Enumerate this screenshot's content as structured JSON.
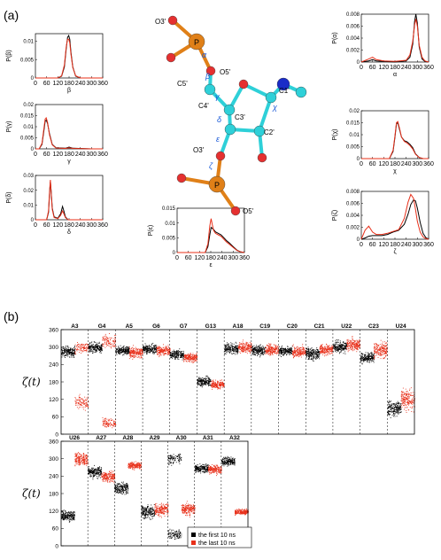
{
  "panel_labels": [
    "(a)",
    "(b)"
  ],
  "legend": {
    "black": "the first 10 ns",
    "red": "the last 10 ns"
  },
  "colors": {
    "first": "#000000",
    "last": "#e8301a",
    "carbon": "#2ed0d8",
    "oxygen": "#e53030",
    "phosphorus": "#e08018",
    "nitrogen": "#1a2cc8",
    "greek": "#1a5ad8"
  },
  "molecule": {
    "atoms": [
      {
        "label": "O3'"
      },
      {
        "label": "P"
      },
      {
        "label": "O5'"
      },
      {
        "label": "C5'"
      },
      {
        "label": "C4'"
      },
      {
        "label": "C3'"
      },
      {
        "label": "C1'"
      },
      {
        "label": "C2'"
      },
      {
        "label": "O3'"
      },
      {
        "label": "P"
      },
      {
        "label": "O5'"
      }
    ],
    "torsions": [
      "α",
      "β",
      "γ",
      "δ",
      "ε",
      "ζ",
      "χ"
    ]
  },
  "chart_data": [
    {
      "type": "line",
      "id": "P_beta",
      "ylabel": "P(β)",
      "xlabel": "β",
      "xlim": [
        0,
        360
      ],
      "ylim": [
        0,
        0.012
      ],
      "yticks": [
        "0",
        "0.005",
        "0.01"
      ],
      "xticks": [
        "0",
        "60",
        "120",
        "180",
        "240",
        "300",
        "360"
      ],
      "series": [
        {
          "name": "the first 10 ns",
          "color": "#000",
          "x": [
            0,
            120,
            140,
            155,
            165,
            172,
            178,
            184,
            190,
            200,
            215,
            240,
            360
          ],
          "y": [
            0,
            0,
            0.0005,
            0.003,
            0.008,
            0.011,
            0.0115,
            0.0105,
            0.007,
            0.003,
            0.0005,
            0,
            0
          ]
        },
        {
          "name": "the last 10 ns",
          "color": "#e8301a",
          "x": [
            0,
            120,
            140,
            155,
            165,
            172,
            178,
            184,
            190,
            200,
            215,
            240,
            360
          ],
          "y": [
            0,
            0,
            0.0006,
            0.0035,
            0.0085,
            0.0105,
            0.0105,
            0.0095,
            0.0065,
            0.0028,
            0.0006,
            0,
            0
          ]
        }
      ]
    },
    {
      "type": "line",
      "id": "P_gamma",
      "ylabel": "P(γ)",
      "xlabel": "γ",
      "xlim": [
        0,
        360
      ],
      "ylim": [
        0,
        0.02
      ],
      "yticks": [
        "0",
        "0.005",
        "0.01",
        "0.015",
        "0.02"
      ],
      "xticks": [
        "0",
        "60",
        "120",
        "180",
        "240",
        "300",
        "360"
      ],
      "series": [
        {
          "name": "the first 10 ns",
          "color": "#000",
          "x": [
            0,
            20,
            35,
            45,
            52,
            58,
            65,
            75,
            90,
            110,
            160,
            180,
            200,
            300,
            360
          ],
          "y": [
            0,
            0,
            0.002,
            0.008,
            0.0125,
            0.013,
            0.0115,
            0.007,
            0.002,
            0.0005,
            0.0003,
            0.0008,
            0.0003,
            0,
            0
          ]
        },
        {
          "name": "the last 10 ns",
          "color": "#e8301a",
          "x": [
            0,
            20,
            35,
            45,
            52,
            58,
            65,
            75,
            90,
            110,
            160,
            180,
            200,
            300,
            360
          ],
          "y": [
            0,
            0,
            0.0025,
            0.009,
            0.0135,
            0.014,
            0.012,
            0.0065,
            0.0018,
            0.0004,
            0.0002,
            0.0005,
            0.0002,
            0,
            0
          ]
        }
      ]
    },
    {
      "type": "line",
      "id": "P_delta",
      "ylabel": "P(δ)",
      "xlabel": "δ",
      "xlim": [
        0,
        360
      ],
      "ylim": [
        0,
        0.03
      ],
      "yticks": [
        "0",
        "0.01",
        "0.02",
        "0.03"
      ],
      "xticks": [
        "0",
        "60",
        "120",
        "180",
        "240",
        "300",
        "360"
      ],
      "series": [
        {
          "name": "the first 10 ns",
          "color": "#000",
          "x": [
            0,
            60,
            70,
            76,
            80,
            84,
            90,
            100,
            120,
            135,
            145,
            152,
            160,
            175,
            200,
            360
          ],
          "y": [
            0,
            0,
            0.005,
            0.018,
            0.026,
            0.02,
            0.008,
            0.002,
            0.001,
            0.004,
            0.009,
            0.006,
            0.002,
            0,
            0,
            0
          ]
        },
        {
          "name": "the last 10 ns",
          "color": "#e8301a",
          "x": [
            0,
            60,
            70,
            76,
            80,
            84,
            90,
            100,
            120,
            135,
            145,
            152,
            160,
            175,
            200,
            360
          ],
          "y": [
            0,
            0,
            0.006,
            0.02,
            0.027,
            0.019,
            0.007,
            0.0015,
            0.0008,
            0.003,
            0.006,
            0.004,
            0.0015,
            0,
            0,
            0
          ]
        }
      ]
    },
    {
      "type": "line",
      "id": "P_alpha",
      "ylabel": "P(α)",
      "xlabel": "α",
      "xlim": [
        0,
        360
      ],
      "ylim": [
        0,
        0.008
      ],
      "yticks": [
        "0",
        "0.002",
        "0.004",
        "0.006",
        "0.008"
      ],
      "xticks": [
        "0",
        "60",
        "120",
        "180",
        "240",
        "300",
        "360"
      ],
      "series": [
        {
          "name": "the first 10 ns",
          "color": "#000",
          "x": [
            0,
            40,
            60,
            80,
            120,
            180,
            240,
            260,
            275,
            285,
            292,
            300,
            310,
            325,
            340,
            360
          ],
          "y": [
            0,
            0.0002,
            0.0004,
            0.0002,
            0.0001,
            0,
            0.0002,
            0.0008,
            0.003,
            0.0068,
            0.008,
            0.0065,
            0.0025,
            0.0005,
            0.0001,
            0
          ]
        },
        {
          "name": "the last 10 ns",
          "color": "#e8301a",
          "x": [
            0,
            40,
            60,
            80,
            120,
            180,
            240,
            260,
            275,
            285,
            292,
            300,
            310,
            325,
            340,
            360
          ],
          "y": [
            0,
            0.0005,
            0.0008,
            0.0004,
            0.0002,
            0.0001,
            0.0003,
            0.0012,
            0.0035,
            0.0062,
            0.0072,
            0.006,
            0.0028,
            0.0008,
            0.0002,
            0
          ]
        }
      ]
    },
    {
      "type": "line",
      "id": "P_chi",
      "ylabel": "P(χ)",
      "xlabel": "χ",
      "xlim": [
        0,
        360
      ],
      "ylim": [
        0,
        0.02
      ],
      "yticks": [
        "0",
        "0.005",
        "0.01",
        "0.015",
        "0.02"
      ],
      "xticks": [
        "0",
        "60",
        "120",
        "180",
        "240",
        "300",
        "360"
      ],
      "series": [
        {
          "name": "the first 10 ns",
          "color": "#000",
          "x": [
            0,
            150,
            170,
            180,
            188,
            195,
            205,
            215,
            230,
            245,
            260,
            275,
            290,
            310,
            330,
            360
          ],
          "y": [
            0,
            0,
            0.003,
            0.009,
            0.0145,
            0.015,
            0.012,
            0.009,
            0.0075,
            0.007,
            0.006,
            0.0045,
            0.002,
            0.0005,
            0,
            0
          ]
        },
        {
          "name": "the last 10 ns",
          "color": "#e8301a",
          "x": [
            0,
            150,
            170,
            180,
            188,
            195,
            205,
            215,
            230,
            245,
            260,
            275,
            290,
            310,
            330,
            360
          ],
          "y": [
            0,
            0,
            0.0035,
            0.0095,
            0.015,
            0.0155,
            0.0125,
            0.009,
            0.0072,
            0.0065,
            0.0055,
            0.004,
            0.0018,
            0.0004,
            0,
            0
          ]
        }
      ]
    },
    {
      "type": "line",
      "id": "P_zeta",
      "ylabel": "P(ζ)",
      "xlabel": "ζ",
      "xlim": [
        0,
        360
      ],
      "ylim": [
        0,
        0.008
      ],
      "yticks": [
        "0",
        "0.002",
        "0.004",
        "0.006",
        "0.008"
      ],
      "xticks": [
        "0",
        "60",
        "120",
        "180",
        "240",
        "300",
        "360"
      ],
      "series": [
        {
          "name": "the first 10 ns",
          "color": "#000",
          "x": [
            0,
            20,
            40,
            60,
            80,
            110,
            140,
            170,
            200,
            230,
            250,
            265,
            280,
            290,
            300,
            315,
            330,
            345,
            360
          ],
          "y": [
            0,
            0.0002,
            0.0005,
            0.0006,
            0.0006,
            0.0006,
            0.0008,
            0.0012,
            0.0015,
            0.0025,
            0.0042,
            0.0058,
            0.0066,
            0.0064,
            0.0052,
            0.0028,
            0.001,
            0.0003,
            0
          ]
        },
        {
          "name": "the last 10 ns",
          "color": "#e8301a",
          "x": [
            0,
            20,
            40,
            60,
            80,
            110,
            140,
            170,
            200,
            230,
            250,
            265,
            280,
            290,
            300,
            315,
            330,
            345,
            360
          ],
          "y": [
            0,
            0.0015,
            0.0022,
            0.0012,
            0.0008,
            0.0008,
            0.001,
            0.0013,
            0.0016,
            0.0035,
            0.0062,
            0.0075,
            0.0068,
            0.005,
            0.003,
            0.0012,
            0.0004,
            0.0001,
            0
          ]
        }
      ]
    },
    {
      "type": "line",
      "id": "P_epsilon",
      "ylabel": "P(ε)",
      "xlabel": "ε",
      "xlim": [
        0,
        360
      ],
      "ylim": [
        0,
        0.015
      ],
      "yticks": [
        "0",
        "0.005",
        "0.01",
        "0.015"
      ],
      "xticks": [
        "0",
        "60",
        "120",
        "180",
        "240",
        "300",
        "360"
      ],
      "series": [
        {
          "name": "the first 10 ns",
          "color": "#000",
          "x": [
            0,
            150,
            165,
            175,
            182,
            188,
            195,
            205,
            220,
            235,
            250,
            265,
            280,
            300,
            320,
            340,
            360
          ],
          "y": [
            0,
            0,
            0.002,
            0.006,
            0.0085,
            0.0082,
            0.0078,
            0.007,
            0.0065,
            0.006,
            0.005,
            0.004,
            0.0032,
            0.002,
            0.0008,
            0.0002,
            0
          ]
        },
        {
          "name": "the last 10 ns",
          "color": "#e8301a",
          "x": [
            0,
            150,
            165,
            175,
            182,
            188,
            195,
            205,
            220,
            235,
            250,
            265,
            280,
            300,
            320,
            340,
            360
          ],
          "y": [
            0,
            0,
            0.003,
            0.009,
            0.0115,
            0.0095,
            0.0075,
            0.0065,
            0.006,
            0.0055,
            0.0045,
            0.0035,
            0.0028,
            0.0017,
            0.0007,
            0.0002,
            0
          ]
        }
      ]
    },
    {
      "type": "scatter",
      "id": "zeta_t_top",
      "ylabel": "ζ(t)",
      "ylim": [
        0,
        360
      ],
      "yticks": [
        "0",
        "60",
        "120",
        "180",
        "240",
        "300",
        "360"
      ],
      "residues": [
        {
          "name": "A3",
          "first": [
            {
              "c": 285,
              "s": 12
            }
          ],
          "last": [
            {
              "c": 300,
              "s": 14
            },
            {
              "c": 110,
              "s": 15
            }
          ]
        },
        {
          "name": "G4",
          "first": [
            {
              "c": 298,
              "s": 12
            }
          ],
          "last": [
            {
              "c": 320,
              "s": 16
            },
            {
              "c": 40,
              "s": 10
            }
          ]
        },
        {
          "name": "A5",
          "first": [
            {
              "c": 290,
              "s": 10
            }
          ],
          "last": [
            {
              "c": 282,
              "s": 12
            }
          ]
        },
        {
          "name": "G6",
          "first": [
            {
              "c": 295,
              "s": 10
            }
          ],
          "last": [
            {
              "c": 288,
              "s": 11
            }
          ]
        },
        {
          "name": "G7",
          "first": [
            {
              "c": 275,
              "s": 10
            }
          ],
          "last": [
            {
              "c": 265,
              "s": 10
            }
          ]
        },
        {
          "name": "G13",
          "first": [
            {
              "c": 182,
              "s": 10
            }
          ],
          "last": [
            {
              "c": 172,
              "s": 10
            }
          ]
        },
        {
          "name": "A18",
          "first": [
            {
              "c": 295,
              "s": 12
            }
          ],
          "last": [
            {
              "c": 300,
              "s": 12
            }
          ]
        },
        {
          "name": "C19",
          "first": [
            {
              "c": 290,
              "s": 12
            }
          ],
          "last": [
            {
              "c": 292,
              "s": 12
            }
          ]
        },
        {
          "name": "C20",
          "first": [
            {
              "c": 288,
              "s": 10
            }
          ],
          "last": [
            {
              "c": 285,
              "s": 12
            }
          ]
        },
        {
          "name": "C21",
          "first": [
            {
              "c": 278,
              "s": 14
            }
          ],
          "last": [
            {
              "c": 292,
              "s": 12
            }
          ]
        },
        {
          "name": "U22",
          "first": [
            {
              "c": 302,
              "s": 14
            }
          ],
          "last": [
            {
              "c": 310,
              "s": 14
            }
          ]
        },
        {
          "name": "C23",
          "first": [
            {
              "c": 265,
              "s": 12
            }
          ],
          "last": [
            {
              "c": 290,
              "s": 18
            }
          ]
        },
        {
          "name": "U24",
          "first": [
            {
              "c": 90,
              "s": 18
            }
          ],
          "last": [
            {
              "c": 120,
              "s": 25
            }
          ]
        }
      ]
    },
    {
      "type": "scatter",
      "id": "zeta_t_bottom",
      "ylabel": "ζ(t)",
      "ylim": [
        0,
        360
      ],
      "yticks": [
        "0",
        "60",
        "120",
        "180",
        "240",
        "300",
        "360"
      ],
      "residues": [
        {
          "name": "U26",
          "first": [
            {
              "c": 105,
              "s": 12
            }
          ],
          "last": [
            {
              "c": 300,
              "s": 14
            }
          ]
        },
        {
          "name": "A27",
          "first": [
            {
              "c": 255,
              "s": 12
            }
          ],
          "last": [
            {
              "c": 240,
              "s": 14
            }
          ]
        },
        {
          "name": "A28",
          "first": [
            {
              "c": 200,
              "s": 14
            }
          ],
          "last": [
            {
              "c": 278,
              "s": 8
            }
          ]
        },
        {
          "name": "A29",
          "first": [
            {
              "c": 118,
              "s": 16
            }
          ],
          "last": [
            {
              "c": 125,
              "s": 14
            }
          ]
        },
        {
          "name": "A30",
          "first": [
            {
              "c": 300,
              "s": 14
            },
            {
              "c": 40,
              "s": 10
            }
          ],
          "last": [
            {
              "c": 128,
              "s": 14
            }
          ]
        },
        {
          "name": "A31",
          "first": [
            {
              "c": 268,
              "s": 10
            }
          ],
          "last": [
            {
              "c": 265,
              "s": 10
            }
          ]
        },
        {
          "name": "A32",
          "first": [
            {
              "c": 292,
              "s": 10
            }
          ],
          "last": [
            {
              "c": 118,
              "s": 6
            }
          ]
        }
      ]
    }
  ]
}
